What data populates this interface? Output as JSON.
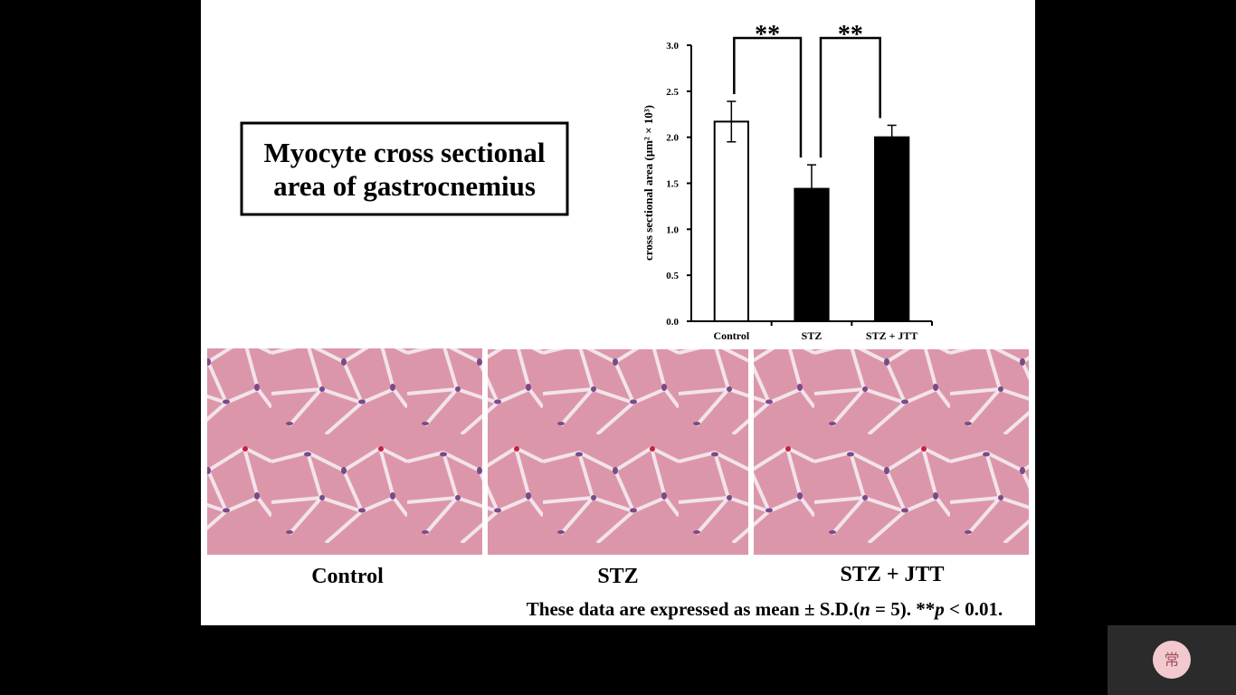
{
  "slide": {
    "title": "Myocyte cross sectional area of gastrocnemius",
    "micrograph_captions": [
      "Control",
      "STZ",
      "STZ + JTT"
    ],
    "footnote": [
      "These data are expressed as mean ± S.D.(",
      "n",
      " = 5). **",
      "p",
      " < 0.01."
    ]
  },
  "widget": {
    "icon_text": "常"
  },
  "chart_data": {
    "type": "bar",
    "y_label": "cross sectional area (μm² × 10³)",
    "categories": [
      "Control",
      "STZ",
      "STZ + JTT"
    ],
    "values": [
      2.17,
      1.44,
      2.0
    ],
    "errors": [
      0.22,
      0.26,
      0.13
    ],
    "colors": [
      "#ffffff",
      "#000000",
      "#000000"
    ],
    "significance": [
      "**",
      "**"
    ],
    "ylim": [
      0,
      3.0
    ],
    "yticks": [
      {
        "value": 0,
        "label": "0.0"
      },
      {
        "value": 0.5,
        "label": "0.5"
      },
      {
        "value": 1,
        "label": "1.0"
      },
      {
        "value": 1.5,
        "label": "1.5"
      },
      {
        "value": 2,
        "label": "2.0"
      },
      {
        "value": 2.5,
        "label": "2.5"
      },
      {
        "value": 3,
        "label": "3.0"
      }
    ],
    "grid": false
  }
}
